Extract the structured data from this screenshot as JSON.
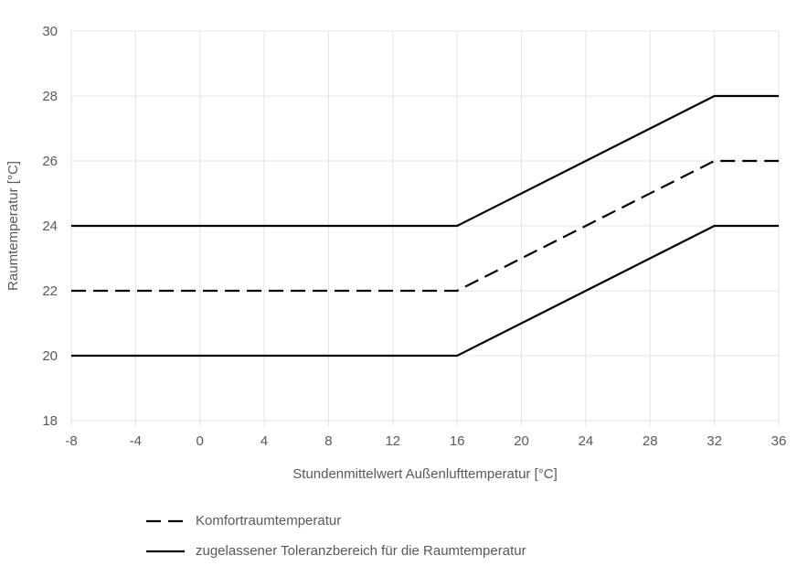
{
  "chart_data": {
    "type": "line",
    "title": "",
    "xlabel": "Stundenmittelwert Außenlufttemperatur [°C]",
    "ylabel": "Raumtemperatur [°C]",
    "xlim": [
      -8,
      36
    ],
    "ylim": [
      18,
      30
    ],
    "xticks": [
      -8,
      -4,
      0,
      4,
      8,
      12,
      16,
      20,
      24,
      28,
      32,
      36
    ],
    "yticks": [
      18,
      20,
      22,
      24,
      26,
      28,
      30
    ],
    "grid": true,
    "legend_position": "bottom",
    "series": [
      {
        "name": "Komfortraumtemperatur",
        "style": "dashed",
        "color": "#000000",
        "x": [
          -8,
          16,
          32,
          36
        ],
        "y": [
          22,
          22,
          26,
          26
        ]
      },
      {
        "name": "zugelassener Toleranzbereich für die Raumtemperatur (oben)",
        "style": "solid",
        "color": "#000000",
        "x": [
          -8,
          16,
          32,
          36
        ],
        "y": [
          24,
          24,
          28,
          28
        ]
      },
      {
        "name": "zugelassener Toleranzbereich für die Raumtemperatur (unten)",
        "style": "solid",
        "color": "#000000",
        "x": [
          -8,
          16,
          32,
          36
        ],
        "y": [
          20,
          20,
          24,
          24
        ]
      }
    ]
  },
  "legend": {
    "items": [
      {
        "label": "Komfortraumtemperatur",
        "style": "dashed"
      },
      {
        "label": "zugelassener Toleranzbereich für die Raumtemperatur",
        "style": "solid"
      }
    ]
  },
  "colors": {
    "grid": "#e3e3e3",
    "line": "#000000",
    "text": "#595959"
  }
}
